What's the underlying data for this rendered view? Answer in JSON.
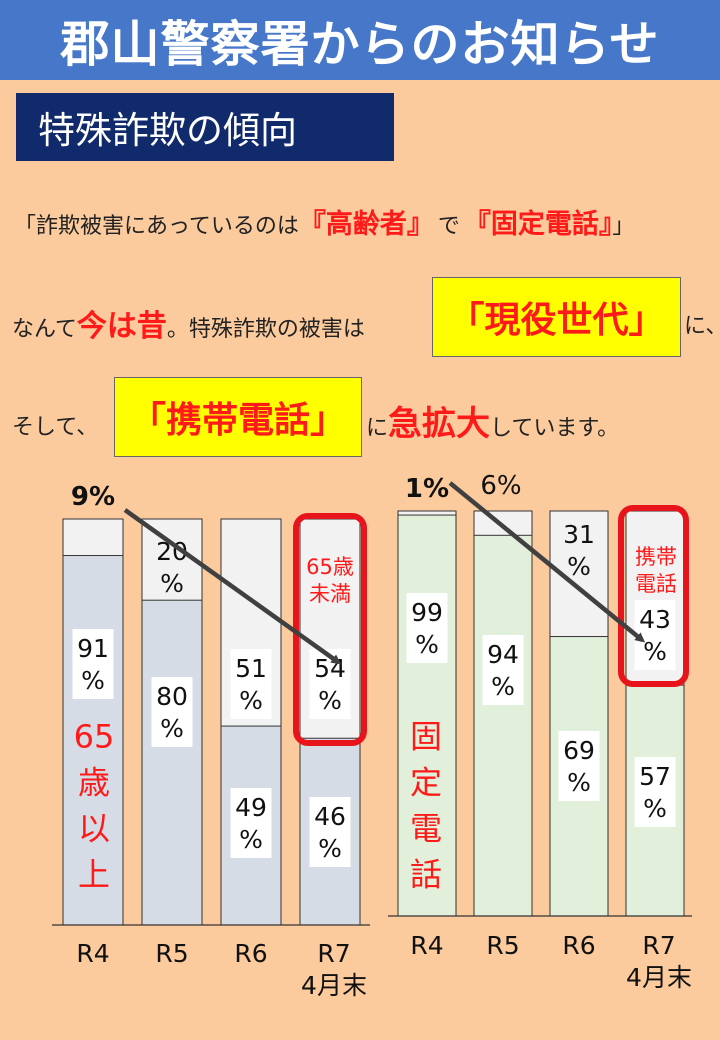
{
  "header": {
    "title": "郡山警察署からのお知らせ"
  },
  "subtitle": {
    "text": "特殊詐欺の傾向"
  },
  "body": {
    "line1": {
      "part1": "「詐欺被害にあっているのは",
      "part2": "『高齢者』",
      "part3": "で",
      "part4": "『固定電話』",
      "part5": "」"
    },
    "line2": {
      "part1": "なんて",
      "part2": "今は昔",
      "part3": "。特殊詐欺の被害は",
      "box": "「現役世代」",
      "part4": "に、"
    },
    "line3": {
      "part1": "そして、",
      "box": "「携帯電話」",
      "part2": "に",
      "part3": "急拡大",
      "part4": "しています。"
    }
  },
  "colors": {
    "header": "#4677C8",
    "subtitle": "#102A6B",
    "background": "#FBCA9D",
    "accent_red": "#FF1A1A",
    "highlight": "#FFFF00",
    "left_bars": "#D6DCE5",
    "right_bars": "#E2EFDA",
    "top_segment": "#F2F2F2",
    "arrow": "#404040"
  },
  "chart_data": [
    {
      "type": "bar",
      "stacked": true,
      "normalized": true,
      "categories": [
        "R4",
        "R5",
        "R6",
        "R7\n4月末"
      ],
      "series": [
        {
          "name": "65歳以上",
          "values": [
            91,
            80,
            49,
            46
          ],
          "labels": [
            "91\n%",
            "80\n%",
            "49\n%",
            "46\n%"
          ]
        },
        {
          "name": "65歳未満",
          "values": [
            9,
            20,
            51,
            54
          ],
          "labels": [
            "9%",
            "20\n%",
            "51\n%",
            "54\n%"
          ]
        }
      ],
      "series_labels": {
        "bottom": "65\n歳\n以\n上",
        "top": "65歳\n未満"
      },
      "highlight": {
        "category_index": 3,
        "series_index": 1
      },
      "arrow": {
        "from_category_index": 0,
        "to_category_index": 3
      }
    },
    {
      "type": "bar",
      "stacked": true,
      "normalized": true,
      "categories": [
        "R4",
        "R5",
        "R6",
        "R7\n4月末"
      ],
      "series": [
        {
          "name": "固定電話",
          "values": [
            99,
            94,
            69,
            57
          ],
          "labels": [
            "99\n%",
            "94\n%",
            "69\n%",
            "57\n%"
          ]
        },
        {
          "name": "携帯電話",
          "values": [
            1,
            6,
            31,
            43
          ],
          "labels": [
            "1%",
            "6%",
            "31\n%",
            "43\n%"
          ]
        }
      ],
      "series_labels": {
        "bottom": "固\n定\n電\n話",
        "top": "携帯\n電話"
      },
      "highlight": {
        "category_index": 3,
        "series_index": 1
      },
      "arrow": {
        "from_category_index": 0,
        "to_category_index": 3
      }
    }
  ]
}
